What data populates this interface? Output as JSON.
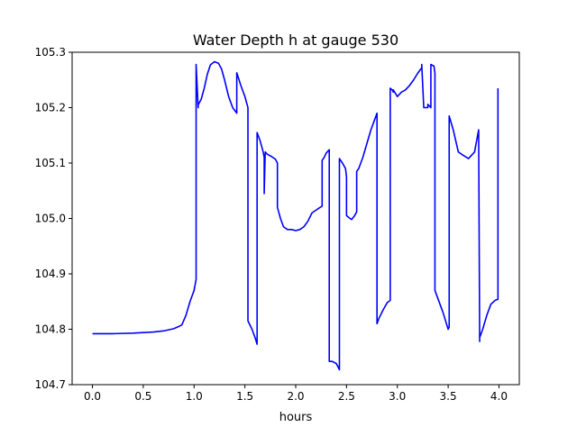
{
  "chart_data": {
    "type": "line",
    "title": "Water Depth h at gauge 530",
    "xlabel": "hours",
    "ylabel": "",
    "xlim": [
      -0.2,
      4.2
    ],
    "ylim": [
      104.7,
      105.3
    ],
    "xticks": [
      0.0,
      0.5,
      1.0,
      1.5,
      2.0,
      2.5,
      3.0,
      3.5,
      4.0
    ],
    "xtick_labels": [
      "0.0",
      "0.5",
      "1.0",
      "1.5",
      "2.0",
      "2.5",
      "3.0",
      "3.5",
      "4.0"
    ],
    "yticks": [
      104.7,
      104.8,
      104.9,
      105.0,
      105.1,
      105.2,
      105.3
    ],
    "ytick_labels": [
      "104.7",
      "104.8",
      "104.9",
      "105.0",
      "105.1",
      "105.2",
      "105.3"
    ],
    "grid": false,
    "legend": "none",
    "series": [
      {
        "color": "#0000ff",
        "x": [
          0.0,
          0.2,
          0.4,
          0.6,
          0.7,
          0.8,
          0.85,
          0.88,
          0.92,
          0.96,
          1.0,
          1.02,
          1.02,
          1.04,
          1.04,
          1.07,
          1.1,
          1.13,
          1.16,
          1.2,
          1.24,
          1.27,
          1.3,
          1.34,
          1.38,
          1.42,
          1.42,
          1.46,
          1.5,
          1.53,
          1.53,
          1.57,
          1.6,
          1.62,
          1.62,
          1.65,
          1.68,
          1.69,
          1.69,
          1.7,
          1.72,
          1.76,
          1.8,
          1.82,
          1.82,
          1.85,
          1.88,
          1.92,
          1.96,
          2.0,
          2.04,
          2.08,
          2.12,
          2.16,
          2.2,
          2.24,
          2.26,
          2.26,
          2.28,
          2.3,
          2.32,
          2.33,
          2.33,
          2.36,
          2.4,
          2.43,
          2.43,
          2.46,
          2.49,
          2.5,
          2.5,
          2.52,
          2.55,
          2.58,
          2.6,
          2.6,
          2.62,
          2.66,
          2.7,
          2.74,
          2.78,
          2.8,
          2.8,
          2.82,
          2.86,
          2.9,
          2.93,
          2.93,
          2.95,
          2.96,
          2.96,
          3.0,
          3.04,
          3.08,
          3.12,
          3.16,
          3.2,
          3.24,
          3.24,
          3.26,
          3.3,
          3.3,
          3.33,
          3.33,
          3.36,
          3.37,
          3.37,
          3.4,
          3.45,
          3.5,
          3.51,
          3.51,
          3.55,
          3.6,
          3.64,
          3.7,
          3.76,
          3.8,
          3.81,
          3.81,
          3.84,
          3.88,
          3.92,
          3.96,
          3.99,
          3.99
        ],
        "y": [
          104.792,
          104.792,
          104.793,
          104.795,
          104.797,
          104.801,
          104.805,
          104.808,
          104.825,
          104.85,
          104.87,
          104.89,
          105.278,
          105.2,
          105.205,
          105.215,
          105.235,
          105.26,
          105.277,
          105.283,
          105.28,
          105.27,
          105.25,
          105.22,
          105.2,
          105.19,
          105.263,
          105.24,
          105.22,
          105.2,
          104.815,
          104.8,
          104.785,
          104.773,
          105.155,
          105.14,
          105.12,
          105.11,
          105.045,
          105.12,
          105.116,
          105.112,
          105.107,
          105.1,
          105.02,
          105.0,
          104.985,
          104.98,
          104.98,
          104.978,
          104.98,
          104.985,
          104.995,
          105.01,
          105.015,
          105.02,
          105.022,
          105.105,
          105.11,
          105.118,
          105.122,
          105.124,
          104.742,
          104.742,
          104.738,
          104.727,
          105.108,
          105.1,
          105.09,
          105.075,
          105.005,
          105.002,
          104.998,
          105.005,
          105.012,
          105.085,
          105.09,
          105.11,
          105.135,
          105.16,
          105.18,
          105.19,
          104.81,
          104.82,
          104.835,
          104.848,
          104.852,
          105.235,
          105.232,
          105.228,
          105.232,
          105.22,
          105.228,
          105.232,
          105.24,
          105.25,
          105.262,
          105.272,
          105.278,
          105.2,
          105.2,
          105.206,
          105.2,
          105.278,
          105.275,
          105.262,
          104.87,
          104.855,
          104.83,
          104.8,
          104.804,
          105.185,
          105.16,
          105.12,
          105.115,
          105.108,
          105.12,
          105.16,
          104.778,
          104.785,
          104.8,
          104.825,
          104.845,
          104.852,
          104.854,
          105.235
        ]
      }
    ]
  }
}
